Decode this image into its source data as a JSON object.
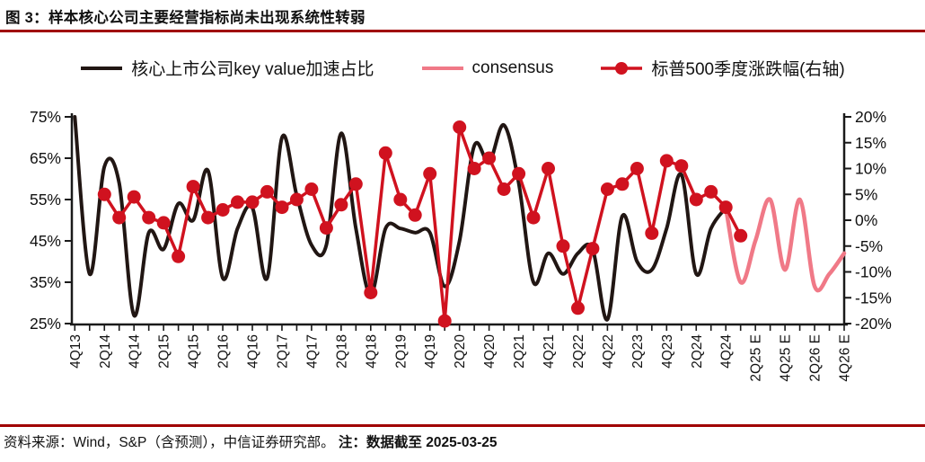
{
  "figure": {
    "title": "图 3：样本核心公司主要经营指标尚未出现系统性转弱"
  },
  "legend": [
    {
      "label": "核心上市公司key value加速占比",
      "color": "#211613",
      "type": "line"
    },
    {
      "label": "consensus",
      "color": "#f07987",
      "type": "line"
    },
    {
      "label": "标普500季度涨跌幅(右轴)",
      "color": "#d0121f",
      "type": "line-marker"
    }
  ],
  "footer": {
    "source": "资料来源：Wind，S&P（含预测），中信证券研究部。",
    "note": "注：数据截至 2025-03-25"
  },
  "colors": {
    "rule": "#a00000",
    "axis": "#1a1a1a",
    "black_line": "#211613",
    "red_line": "#d0121f",
    "pink_line": "#f07987"
  },
  "chart_data": {
    "type": "line",
    "title": "样本核心公司主要经营指标尚未出现系统性转弱",
    "x_tick_labels": [
      "4Q13",
      "2Q14",
      "4Q14",
      "2Q15",
      "4Q15",
      "2Q16",
      "4Q16",
      "2Q17",
      "4Q17",
      "2Q18",
      "4Q18",
      "2Q19",
      "4Q19",
      "2Q20",
      "4Q20",
      "2Q21",
      "4Q21",
      "2Q22",
      "4Q22",
      "2Q23",
      "4Q23",
      "2Q24",
      "4Q24",
      "2Q25 E",
      "4Q25 E",
      "2Q26 E",
      "4Q26 E"
    ],
    "x_total_quarters": 53,
    "left_axis": {
      "min": 25,
      "max": 75,
      "tick_labels": [
        "75%",
        "65%",
        "55%",
        "45%",
        "35%",
        "25%"
      ]
    },
    "right_axis": {
      "min": -20,
      "max": 20,
      "tick_labels": [
        "20%",
        "15%",
        "10%",
        "5%",
        "0%",
        "-5%",
        "-10%",
        "-15%",
        "-20%"
      ]
    },
    "grid": false,
    "legend_position": "top",
    "series": [
      {
        "name": "核心上市公司key value加速占比",
        "axis": "left",
        "style": "smooth",
        "marker": false,
        "color": "#211613",
        "width": 4,
        "start_index": 0,
        "start_quarter": "4Q13",
        "values": [
          75,
          37,
          63,
          59,
          27,
          47,
          43,
          54,
          50,
          62,
          36,
          48,
          53,
          36,
          70,
          56,
          44,
          44,
          71,
          48,
          32,
          48,
          48,
          47,
          47,
          34,
          45,
          68,
          64,
          73,
          59,
          35,
          42,
          37,
          42,
          43,
          26,
          51,
          40,
          38,
          48,
          61,
          37,
          48,
          53
        ]
      },
      {
        "name": "consensus",
        "axis": "left",
        "style": "smooth",
        "marker": false,
        "color": "#f07987",
        "width": 4.5,
        "start_index": 44,
        "start_quarter": "4Q24",
        "values": [
          53,
          35,
          45,
          55,
          38,
          55,
          34,
          37,
          42
        ]
      },
      {
        "name": "标普500季度涨跌幅(右轴)",
        "axis": "right",
        "style": "straight",
        "marker": true,
        "marker_radius": 7.5,
        "color": "#d0121f",
        "width": 3.5,
        "start_index": 2,
        "start_quarter": "2Q14",
        "values": [
          5,
          0.5,
          4.5,
          0.5,
          -0.5,
          -7,
          6.5,
          0.5,
          2,
          3.5,
          3.5,
          5.5,
          2.5,
          4,
          6,
          -1.5,
          3,
          7,
          -14,
          13,
          4,
          1,
          9,
          -19.5,
          18,
          10,
          12,
          6,
          9,
          0.5,
          10,
          -5,
          -17,
          -5.5,
          6,
          7,
          10,
          -2.5,
          11.5,
          10.5,
          4,
          5.5,
          2.5,
          -3
        ]
      }
    ]
  }
}
